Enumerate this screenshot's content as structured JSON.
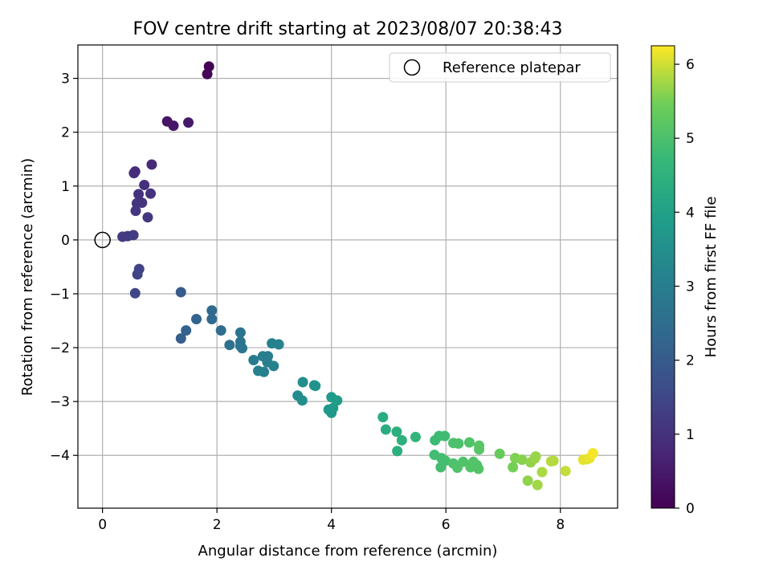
{
  "chart_data": {
    "type": "scatter",
    "title": "FOV centre drift starting at 2023/08/07 20:38:43",
    "xlabel": "Angular distance from reference (arcmin)",
    "ylabel": "Rotation from reference (arcmin)",
    "xlim": [
      -0.43,
      9.0
    ],
    "ylim": [
      -4.98,
      3.62
    ],
    "xticks": [
      0,
      2,
      4,
      6,
      8
    ],
    "yticks": [
      -4,
      -3,
      -2,
      -1,
      0,
      1,
      2,
      3
    ],
    "grid": true,
    "legend_position": "top-right",
    "legend": {
      "label": "Reference platepar"
    },
    "reference_point": {
      "x": 0,
      "y": 0
    },
    "colorbar": {
      "label": "Hours from first FF file",
      "range": [
        0,
        6.25
      ],
      "ticks": [
        0,
        1,
        2,
        3,
        4,
        5,
        6
      ],
      "colormap": "viridis"
    },
    "points": [
      {
        "x": 1.86,
        "y": 3.22,
        "h": 0.05
      },
      {
        "x": 1.83,
        "y": 3.08,
        "h": 0.1
      },
      {
        "x": 1.13,
        "y": 2.2,
        "h": 0.4
      },
      {
        "x": 1.24,
        "y": 2.12,
        "h": 0.45
      },
      {
        "x": 1.5,
        "y": 2.18,
        "h": 0.5
      },
      {
        "x": 0.86,
        "y": 1.4,
        "h": 0.8
      },
      {
        "x": 0.57,
        "y": 1.27,
        "h": 0.9
      },
      {
        "x": 0.55,
        "y": 1.24,
        "h": 0.9
      },
      {
        "x": 0.73,
        "y": 1.02,
        "h": 0.95
      },
      {
        "x": 0.63,
        "y": 0.85,
        "h": 1.0
      },
      {
        "x": 0.84,
        "y": 0.86,
        "h": 1.0
      },
      {
        "x": 0.69,
        "y": 0.69,
        "h": 1.05
      },
      {
        "x": 0.6,
        "y": 0.68,
        "h": 1.05
      },
      {
        "x": 0.58,
        "y": 0.54,
        "h": 1.1
      },
      {
        "x": 0.79,
        "y": 0.42,
        "h": 1.1
      },
      {
        "x": 0.35,
        "y": 0.06,
        "h": 1.2
      },
      {
        "x": 0.44,
        "y": 0.07,
        "h": 1.2
      },
      {
        "x": 0.54,
        "y": 0.09,
        "h": 1.25
      },
      {
        "x": 0.64,
        "y": -0.54,
        "h": 1.4
      },
      {
        "x": 0.61,
        "y": -0.64,
        "h": 1.4
      },
      {
        "x": 0.57,
        "y": -0.99,
        "h": 1.5
      },
      {
        "x": 1.37,
        "y": -0.97,
        "h": 2.0
      },
      {
        "x": 1.37,
        "y": -1.83,
        "h": 2.1
      },
      {
        "x": 1.46,
        "y": -1.68,
        "h": 2.15
      },
      {
        "x": 1.64,
        "y": -1.47,
        "h": 2.25
      },
      {
        "x": 1.91,
        "y": -1.31,
        "h": 2.4
      },
      {
        "x": 1.91,
        "y": -1.47,
        "h": 2.4
      },
      {
        "x": 2.07,
        "y": -1.68,
        "h": 2.5
      },
      {
        "x": 2.22,
        "y": -1.95,
        "h": 2.6
      },
      {
        "x": 2.41,
        "y": -1.72,
        "h": 2.7
      },
      {
        "x": 2.41,
        "y": -1.89,
        "h": 2.7
      },
      {
        "x": 2.41,
        "y": -1.97,
        "h": 2.75
      },
      {
        "x": 2.44,
        "y": -2.01,
        "h": 2.75
      },
      {
        "x": 2.64,
        "y": -2.23,
        "h": 2.9
      },
      {
        "x": 2.8,
        "y": -2.16,
        "h": 3.0
      },
      {
        "x": 2.89,
        "y": -2.16,
        "h": 3.0
      },
      {
        "x": 2.88,
        "y": -2.27,
        "h": 3.0
      },
      {
        "x": 2.72,
        "y": -2.43,
        "h": 3.05
      },
      {
        "x": 2.82,
        "y": -2.45,
        "h": 3.05
      },
      {
        "x": 2.99,
        "y": -2.34,
        "h": 3.1
      },
      {
        "x": 2.96,
        "y": -1.92,
        "h": 3.1
      },
      {
        "x": 3.08,
        "y": -1.94,
        "h": 3.15
      },
      {
        "x": 3.41,
        "y": -2.89,
        "h": 3.4
      },
      {
        "x": 3.49,
        "y": -2.98,
        "h": 3.45
      },
      {
        "x": 3.5,
        "y": -2.64,
        "h": 3.45
      },
      {
        "x": 3.7,
        "y": -2.7,
        "h": 3.6
      },
      {
        "x": 3.72,
        "y": -2.71,
        "h": 3.6
      },
      {
        "x": 3.95,
        "y": -3.15,
        "h": 3.75
      },
      {
        "x": 4.0,
        "y": -3.21,
        "h": 3.75
      },
      {
        "x": 4.03,
        "y": -3.12,
        "h": 3.8
      },
      {
        "x": 4.0,
        "y": -2.92,
        "h": 3.8
      },
      {
        "x": 4.1,
        "y": -2.98,
        "h": 3.85
      },
      {
        "x": 4.9,
        "y": -3.29,
        "h": 4.3
      },
      {
        "x": 4.95,
        "y": -3.52,
        "h": 4.35
      },
      {
        "x": 5.14,
        "y": -3.56,
        "h": 4.4
      },
      {
        "x": 5.23,
        "y": -3.72,
        "h": 4.45
      },
      {
        "x": 5.15,
        "y": -3.92,
        "h": 4.45
      },
      {
        "x": 5.47,
        "y": -3.66,
        "h": 4.6
      },
      {
        "x": 5.81,
        "y": -3.72,
        "h": 4.8
      },
      {
        "x": 5.88,
        "y": -3.64,
        "h": 4.8
      },
      {
        "x": 5.98,
        "y": -3.64,
        "h": 4.85
      },
      {
        "x": 5.8,
        "y": -3.99,
        "h": 4.85
      },
      {
        "x": 5.92,
        "y": -4.05,
        "h": 4.9
      },
      {
        "x": 5.99,
        "y": -4.1,
        "h": 4.9
      },
      {
        "x": 5.91,
        "y": -4.22,
        "h": 4.9
      },
      {
        "x": 6.13,
        "y": -3.77,
        "h": 5.0
      },
      {
        "x": 6.22,
        "y": -3.78,
        "h": 5.0
      },
      {
        "x": 6.41,
        "y": -3.76,
        "h": 5.05
      },
      {
        "x": 6.13,
        "y": -4.15,
        "h": 5.0
      },
      {
        "x": 6.2,
        "y": -4.23,
        "h": 5.05
      },
      {
        "x": 6.3,
        "y": -4.12,
        "h": 5.05
      },
      {
        "x": 6.43,
        "y": -4.22,
        "h": 5.1
      },
      {
        "x": 6.48,
        "y": -4.12,
        "h": 5.1
      },
      {
        "x": 6.54,
        "y": -4.18,
        "h": 5.1
      },
      {
        "x": 6.57,
        "y": -4.25,
        "h": 5.1
      },
      {
        "x": 6.58,
        "y": -3.82,
        "h": 5.15
      },
      {
        "x": 6.58,
        "y": -3.89,
        "h": 5.15
      },
      {
        "x": 6.94,
        "y": -3.97,
        "h": 5.35
      },
      {
        "x": 7.17,
        "y": -4.22,
        "h": 5.5
      },
      {
        "x": 7.21,
        "y": -4.05,
        "h": 5.55
      },
      {
        "x": 7.33,
        "y": -4.08,
        "h": 5.6
      },
      {
        "x": 7.43,
        "y": -4.47,
        "h": 5.65
      },
      {
        "x": 7.48,
        "y": -4.13,
        "h": 5.65
      },
      {
        "x": 7.55,
        "y": -4.06,
        "h": 5.7
      },
      {
        "x": 7.57,
        "y": -4.02,
        "h": 5.7
      },
      {
        "x": 7.6,
        "y": -4.55,
        "h": 5.75
      },
      {
        "x": 7.68,
        "y": -4.31,
        "h": 5.8
      },
      {
        "x": 7.84,
        "y": -4.11,
        "h": 5.85
      },
      {
        "x": 7.88,
        "y": -4.1,
        "h": 5.85
      },
      {
        "x": 8.09,
        "y": -4.29,
        "h": 5.95
      },
      {
        "x": 8.4,
        "y": -4.08,
        "h": 6.1
      },
      {
        "x": 8.47,
        "y": -4.07,
        "h": 6.1
      },
      {
        "x": 8.51,
        "y": -4.05,
        "h": 6.15
      },
      {
        "x": 8.57,
        "y": -3.96,
        "h": 6.2
      }
    ]
  }
}
